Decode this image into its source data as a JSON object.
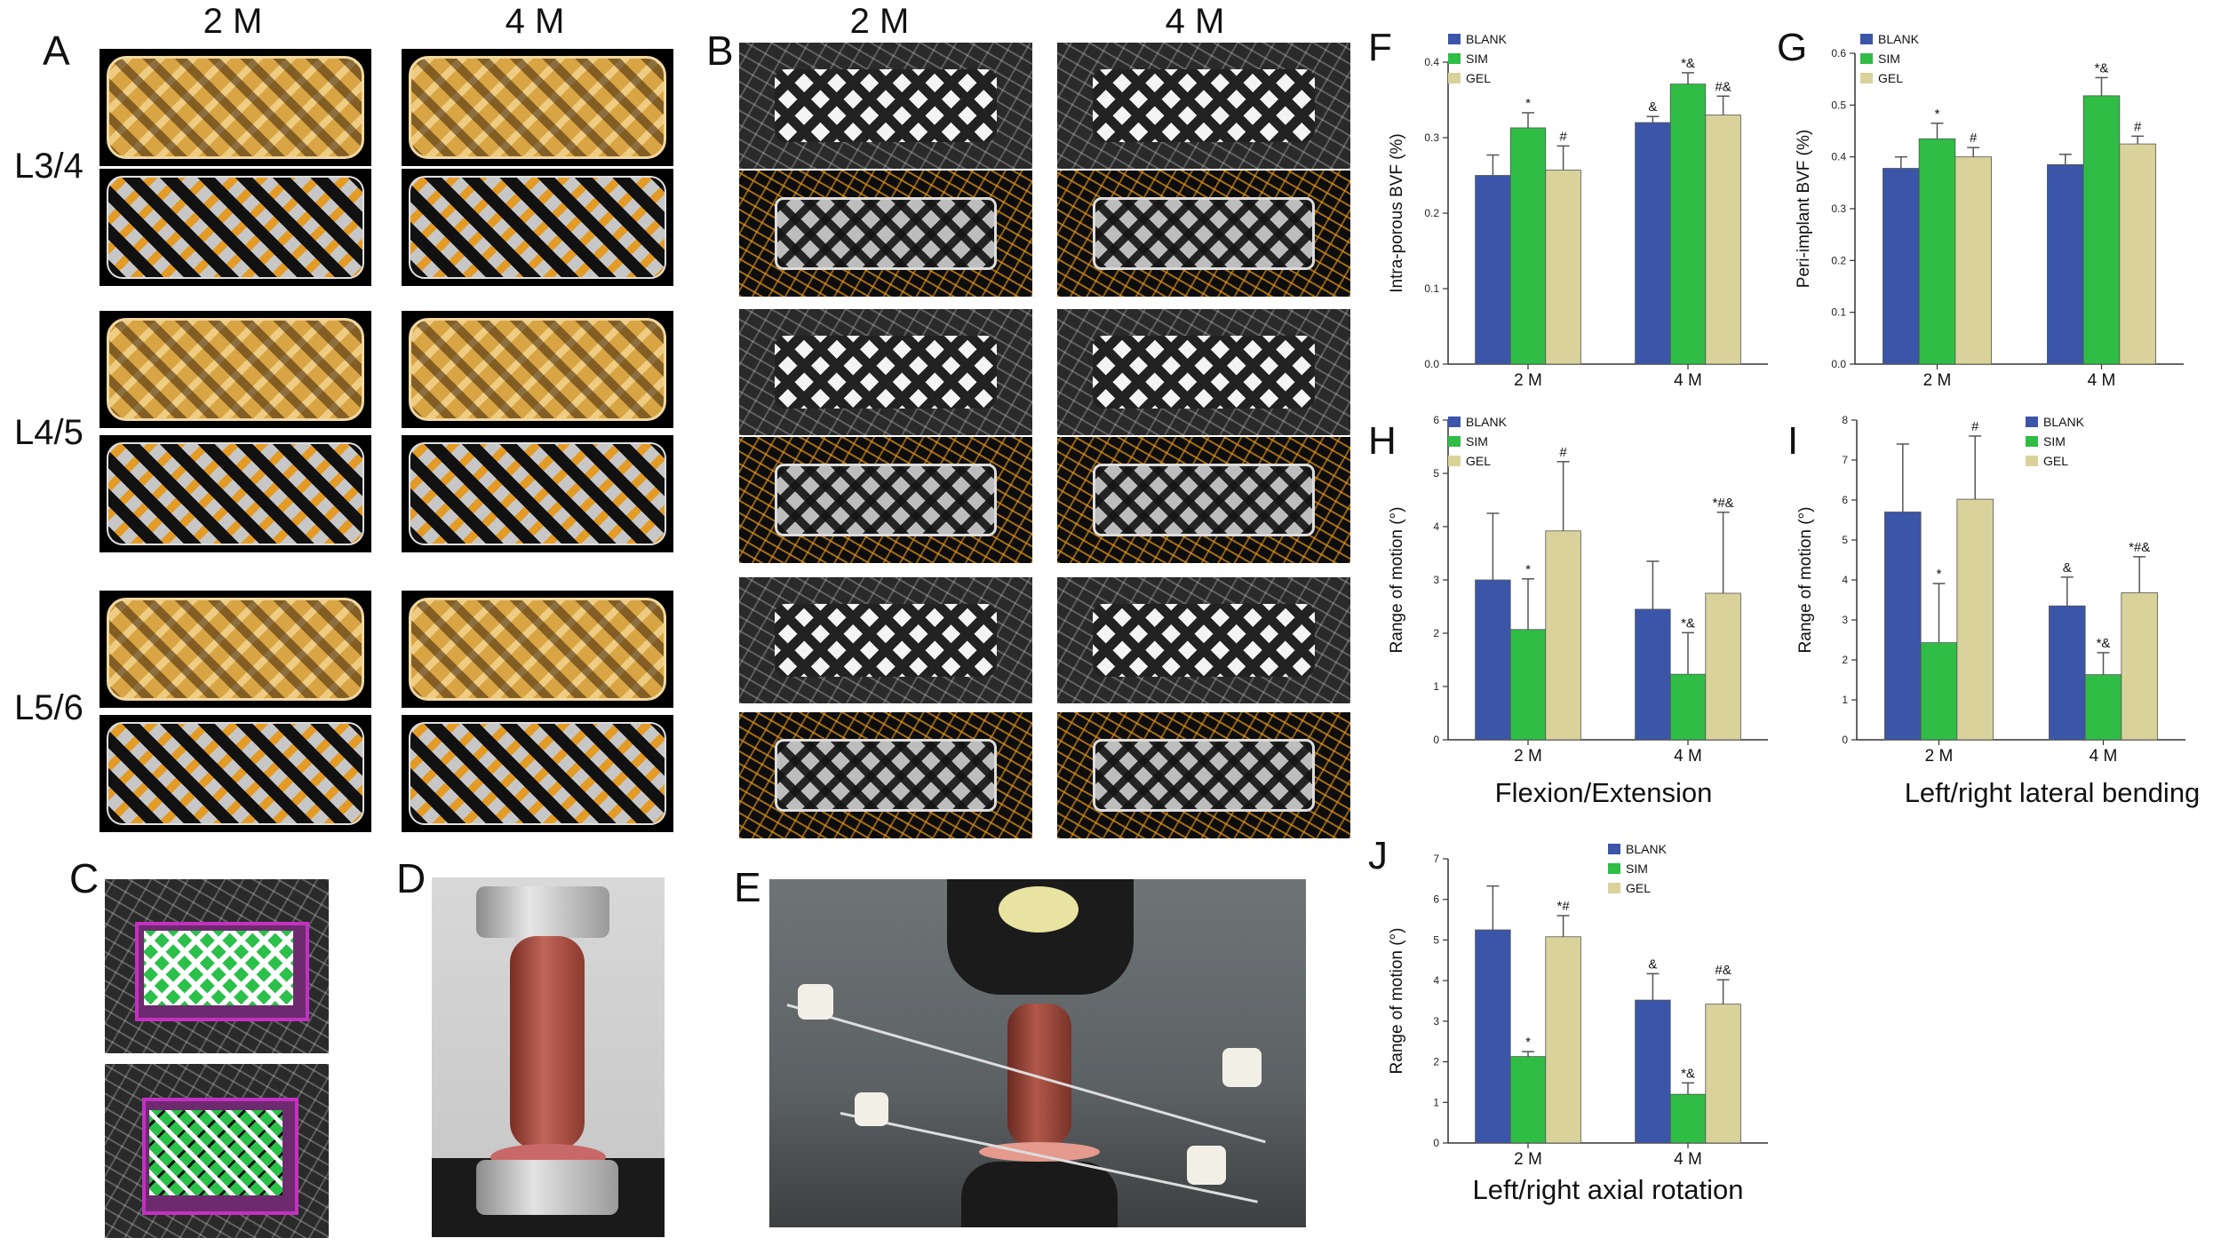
{
  "panels": {
    "A": {
      "letter": "A",
      "col_heads": [
        "2 M",
        "4 M"
      ],
      "row_heads": [
        "L3/4",
        "L4/5",
        "L5/6"
      ]
    },
    "B": {
      "letter": "B",
      "col_heads": [
        "2 M",
        "4 M"
      ]
    },
    "C": {
      "letter": "C"
    },
    "D": {
      "letter": "D"
    },
    "E": {
      "letter": "E"
    }
  },
  "colors": {
    "BLANK": "#3b55a8",
    "SIM": "#2fbd45",
    "GEL": "#d9d29a"
  },
  "chart_data": [
    {
      "id": "F",
      "letter": "F",
      "type": "bar",
      "title": "",
      "ylabel": "Intra-porous BVF (%)",
      "categories": [
        "2 M",
        "4 M"
      ],
      "legend": [
        "BLANK",
        "SIM",
        "GEL"
      ],
      "legend_position": "top-left",
      "ylim": [
        0,
        0.4
      ],
      "yticks": [
        "0.0",
        "0.1",
        "0.2",
        "0.3",
        "0.4"
      ],
      "series": [
        {
          "name": "BLANK",
          "values": [
            0.25,
            0.32
          ],
          "errors": [
            0.027,
            0.008
          ],
          "marks": [
            "",
            "&"
          ]
        },
        {
          "name": "SIM",
          "values": [
            0.313,
            0.371
          ],
          "errors": [
            0.02,
            0.015
          ],
          "marks": [
            "*",
            "*&"
          ]
        },
        {
          "name": "GEL",
          "values": [
            0.257,
            0.33
          ],
          "errors": [
            0.032,
            0.025
          ],
          "marks": [
            "#",
            "#&"
          ]
        }
      ]
    },
    {
      "id": "G",
      "letter": "G",
      "type": "bar",
      "title": "",
      "ylabel": "Peri-implant BVF (%)",
      "categories": [
        "2 M",
        "4 M"
      ],
      "legend": [
        "BLANK",
        "SIM",
        "GEL"
      ],
      "legend_position": "top-left",
      "ylim": [
        0,
        0.6
      ],
      "yticks": [
        "0.0",
        "0.1",
        "0.2",
        "0.3",
        "0.4",
        "0.5",
        "0.6"
      ],
      "series": [
        {
          "name": "BLANK",
          "values": [
            0.378,
            0.385
          ],
          "errors": [
            0.022,
            0.02
          ],
          "marks": [
            "",
            ""
          ]
        },
        {
          "name": "SIM",
          "values": [
            0.435,
            0.518
          ],
          "errors": [
            0.03,
            0.035
          ],
          "marks": [
            "*",
            "*&"
          ]
        },
        {
          "name": "GEL",
          "values": [
            0.4,
            0.425
          ],
          "errors": [
            0.018,
            0.015
          ],
          "marks": [
            "#",
            "#"
          ]
        }
      ]
    },
    {
      "id": "H",
      "letter": "H",
      "type": "bar",
      "title": "Flexion/Extension",
      "ylabel": "Range of motion (°)",
      "categories": [
        "2 M",
        "4 M"
      ],
      "legend": [
        "BLANK",
        "SIM",
        "GEL"
      ],
      "legend_position": "top-left",
      "ylim": [
        0,
        6
      ],
      "yticks": [
        "0",
        "1",
        "2",
        "3",
        "4",
        "5",
        "6"
      ],
      "series": [
        {
          "name": "BLANK",
          "values": [
            3.0,
            2.45
          ],
          "errors": [
            1.25,
            0.9
          ],
          "marks": [
            "",
            ""
          ]
        },
        {
          "name": "SIM",
          "values": [
            2.07,
            1.23
          ],
          "errors": [
            0.95,
            0.78
          ],
          "marks": [
            "*",
            "*&"
          ]
        },
        {
          "name": "GEL",
          "values": [
            3.92,
            2.75
          ],
          "errors": [
            1.3,
            1.52
          ],
          "marks": [
            "#",
            "*#&"
          ]
        }
      ]
    },
    {
      "id": "I",
      "letter": "I",
      "type": "bar",
      "title": "Left/right lateral bending",
      "ylabel": "Range of motion (°)",
      "categories": [
        "2 M",
        "4 M"
      ],
      "legend": [
        "BLANK",
        "SIM",
        "GEL"
      ],
      "legend_position": "top-right",
      "ylim": [
        0,
        8
      ],
      "yticks": [
        "0",
        "1",
        "2",
        "3",
        "4",
        "5",
        "6",
        "7",
        "8"
      ],
      "series": [
        {
          "name": "BLANK",
          "values": [
            5.7,
            3.35
          ],
          "errors": [
            1.7,
            0.72
          ],
          "marks": [
            "",
            "&"
          ]
        },
        {
          "name": "SIM",
          "values": [
            2.43,
            1.63
          ],
          "errors": [
            1.48,
            0.55
          ],
          "marks": [
            "*",
            "*&"
          ]
        },
        {
          "name": "GEL",
          "values": [
            6.02,
            3.68
          ],
          "errors": [
            1.58,
            0.9
          ],
          "marks": [
            "#",
            "*#&"
          ]
        }
      ]
    },
    {
      "id": "J",
      "letter": "J",
      "type": "bar",
      "title": "Left/right axial rotation",
      "ylabel": "Range of motion (°)",
      "categories": [
        "2 M",
        "4 M"
      ],
      "legend": [
        "BLANK",
        "SIM",
        "GEL"
      ],
      "legend_position": "top-right",
      "ylim": [
        0,
        7
      ],
      "yticks": [
        "0",
        "1",
        "2",
        "3",
        "4",
        "5",
        "6",
        "7"
      ],
      "series": [
        {
          "name": "BLANK",
          "values": [
            5.25,
            3.52
          ],
          "errors": [
            1.08,
            0.65
          ],
          "marks": [
            "",
            "&"
          ]
        },
        {
          "name": "SIM",
          "values": [
            2.13,
            1.2
          ],
          "errors": [
            0.12,
            0.28
          ],
          "marks": [
            "*",
            "*&"
          ]
        },
        {
          "name": "GEL",
          "values": [
            5.08,
            3.42
          ],
          "errors": [
            0.52,
            0.6
          ],
          "marks": [
            "*#",
            "#&"
          ]
        }
      ]
    }
  ]
}
